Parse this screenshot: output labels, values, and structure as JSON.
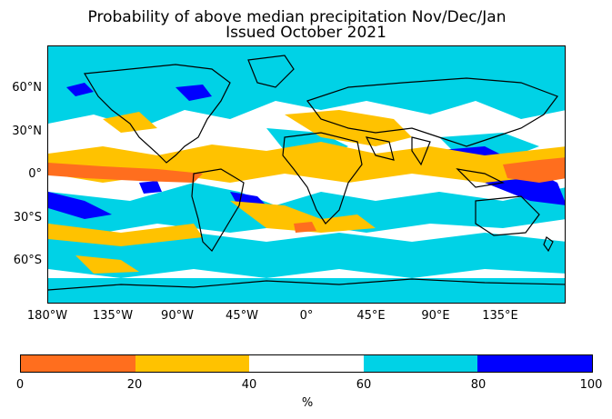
{
  "title_line1": "Probability of above median precipitation Nov/Dec/Jan",
  "title_line2": "Issued October 2021",
  "y_ticks": [
    "60°N",
    "30°N",
    "0°",
    "30°S",
    "60°S"
  ],
  "x_ticks": [
    "180°W",
    "135°W",
    "90°W",
    "45°W",
    "0°",
    "45°E",
    "90°E",
    "135°E"
  ],
  "colorbar": {
    "ticks": [
      "0",
      "20",
      "40",
      "60",
      "80",
      "100"
    ],
    "unit": "%",
    "colors": [
      "#ff6e1e",
      "#ffc200",
      "#ffffff",
      "#00d2e6",
      "#0000ff"
    ]
  },
  "map_palette": {
    "coast": "#000000",
    "low": "#ff6e1e",
    "below": "#ffc200",
    "above": "#00d2e6",
    "high": "#0000ff"
  }
}
